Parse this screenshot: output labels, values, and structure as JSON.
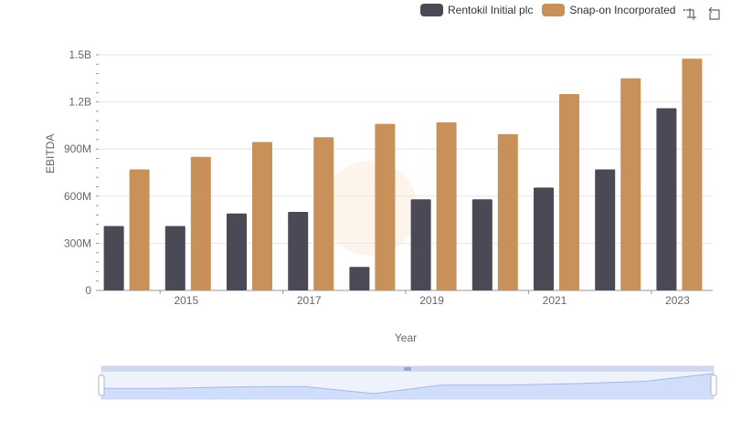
{
  "legend": {
    "items": [
      {
        "label": "Rentokil Initial plc",
        "color": "#4a4a57"
      },
      {
        "label": "Snap-on Incorporated",
        "color": "#c8915a"
      }
    ]
  },
  "toolbox": {
    "icons": [
      "zoom-icon",
      "restore-icon"
    ]
  },
  "chart_data": {
    "type": "bar",
    "xlabel": "Year",
    "ylabel": "EBITDA",
    "categories": [
      "2014",
      "2015",
      "2016",
      "2017",
      "2018",
      "2019",
      "2020",
      "2021",
      "2022",
      "2023"
    ],
    "x_tick_labels": [
      "2015",
      "2017",
      "2019",
      "2021",
      "2023"
    ],
    "y_tick_labels": [
      "0",
      "300M",
      "600M",
      "900M",
      "1.2B",
      "1.5B"
    ],
    "ylim": [
      0,
      1500000000
    ],
    "grid": true,
    "legend_position": "top-right",
    "series": [
      {
        "name": "Rentokil Initial plc",
        "color": "#4a4a57",
        "values": [
          410000000,
          410000000,
          490000000,
          500000000,
          150000000,
          580000000,
          580000000,
          655000000,
          770000000,
          1160000000
        ]
      },
      {
        "name": "Snap-on Incorporated",
        "color": "#c8915a",
        "values": [
          770000000,
          850000000,
          945000000,
          975000000,
          1060000000,
          1070000000,
          995000000,
          1250000000,
          1350000000,
          1475000000
        ]
      }
    ]
  }
}
